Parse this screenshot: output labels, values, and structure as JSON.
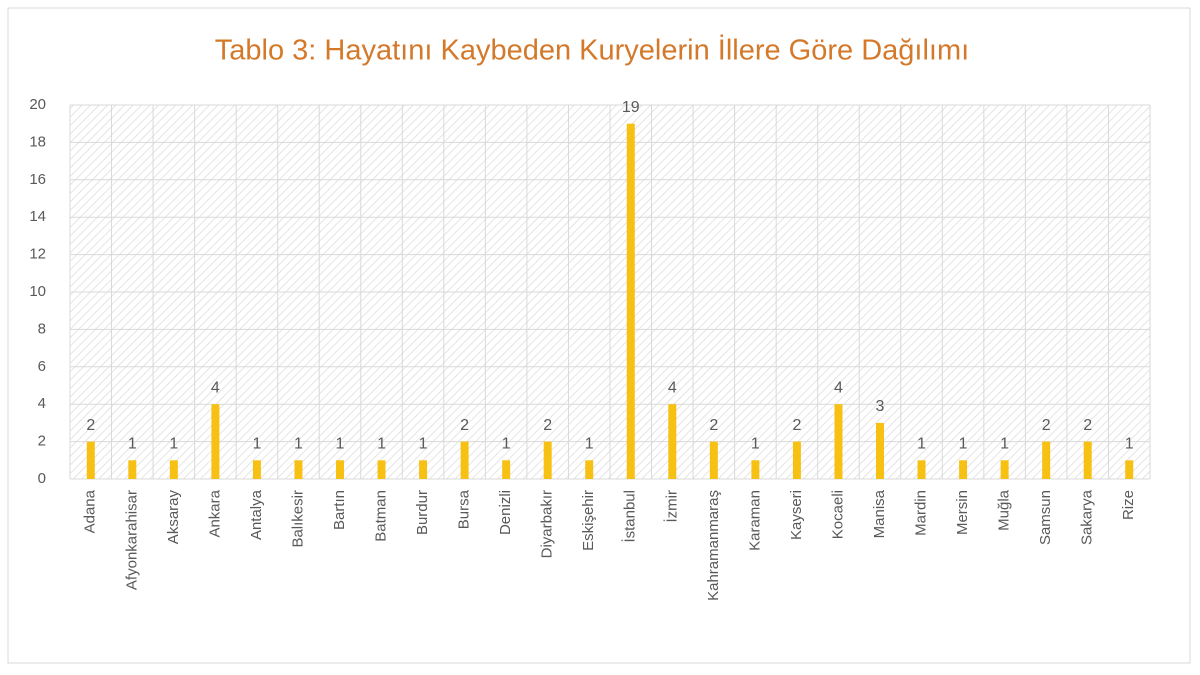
{
  "chart_data": {
    "type": "bar",
    "title": "Tablo 3: Hayatını Kaybeden Kuryelerin İllere Göre Dağılımı",
    "categories": [
      "Adana",
      "Afyonkarahisar",
      "Aksaray",
      "Ankara",
      "Antalya",
      "Balıkesir",
      "Bartın",
      "Batman",
      "Burdur",
      "Bursa",
      "Denizli",
      "Diyarbakır",
      "Eskişehir",
      "İstanbul",
      "İzmir",
      "Kahramanmaraş",
      "Karaman",
      "Kayseri",
      "Kocaeli",
      "Manisa",
      "Mardin",
      "Mersin",
      "Muğla",
      "Samsun",
      "Sakarya",
      "Rize"
    ],
    "values": [
      2,
      1,
      1,
      4,
      1,
      1,
      1,
      1,
      1,
      2,
      1,
      2,
      1,
      19,
      4,
      2,
      1,
      2,
      4,
      3,
      1,
      1,
      1,
      2,
      2,
      1
    ],
    "color": "#f7c114",
    "ylim": [
      0,
      20
    ],
    "yticks": [
      0,
      2,
      4,
      6,
      8,
      10,
      12,
      14,
      16,
      18,
      20
    ],
    "grid": true
  }
}
